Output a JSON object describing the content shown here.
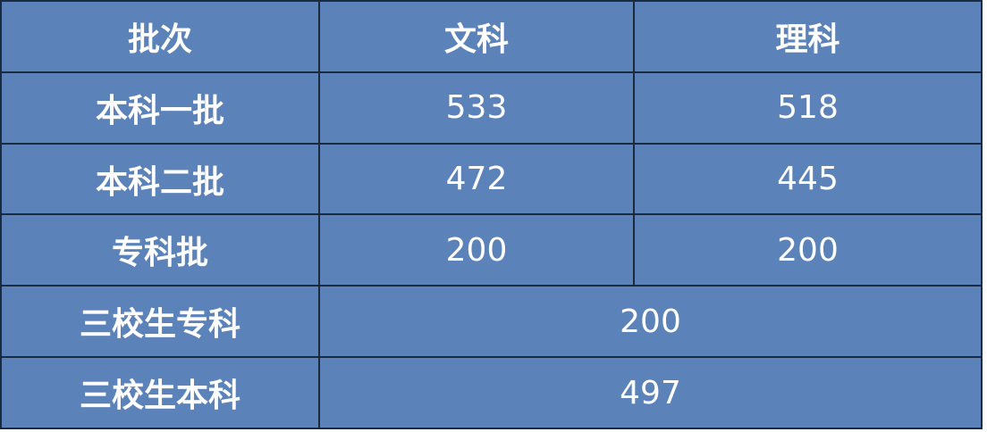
{
  "table": {
    "headers": [
      "批次",
      "文科",
      "理科"
    ],
    "rows": [
      {
        "label": "本科一批",
        "wenke": "533",
        "like": "518"
      },
      {
        "label": "本科二批",
        "wenke": "472",
        "like": "445"
      },
      {
        "label": "专科批",
        "wenke": "200",
        "like": "200"
      },
      {
        "label": "三校生专科",
        "merged": "200"
      },
      {
        "label": "三校生本科",
        "merged": "497"
      }
    ]
  },
  "colors": {
    "cell_background": "#5b83b9",
    "border": "#1c2a3f",
    "text": "#ffffff"
  }
}
